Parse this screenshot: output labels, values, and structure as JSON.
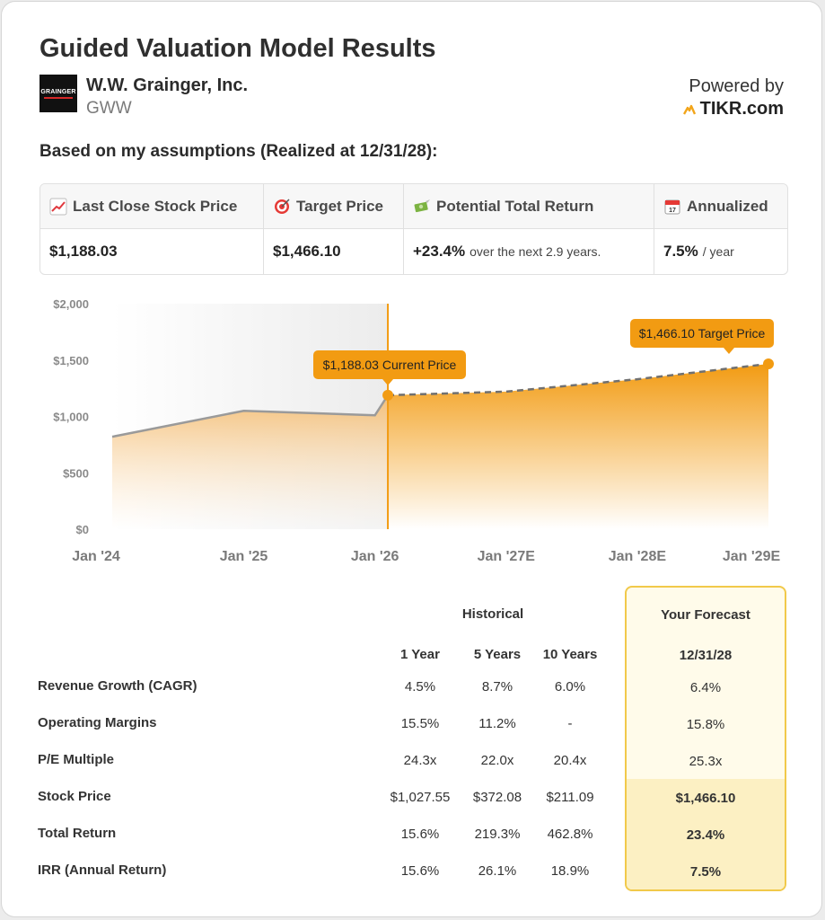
{
  "header": {
    "title": "Guided Valuation Model Results",
    "logo_text": "GRAINGER",
    "company": "W.W. Grainger, Inc.",
    "ticker": "GWW",
    "powered_by": "Powered by",
    "brand": "TIKR.com",
    "subtitle": "Based on my assumptions (Realized at 12/31/28):"
  },
  "summary": [
    {
      "icon": "chart-increasing-icon",
      "label": "Last Close Stock Price",
      "value": "$1,188.03",
      "note": ""
    },
    {
      "icon": "target-icon",
      "label": "Target Price",
      "value": "$1,466.10",
      "note": ""
    },
    {
      "icon": "money-flying-icon",
      "label": "Potential Total Return",
      "value": "+23.4%",
      "note": "over the next 2.9 years."
    },
    {
      "icon": "calendar-icon",
      "label": "Annualized",
      "value": "7.5%",
      "note": "/ year"
    }
  ],
  "chart_data": {
    "type": "area",
    "y_ticks": [
      "$2,000",
      "$1,500",
      "$1,000",
      "$500",
      "$0"
    ],
    "x_ticks": [
      "Jan '24",
      "Jan '25",
      "Jan '26",
      "Jan '27E",
      "Jan '28E",
      "Jan '29E"
    ],
    "ylim": [
      0,
      2000
    ],
    "historical": [
      {
        "x": "2024-01-01",
        "y": 820
      },
      {
        "x": "2025-01-01",
        "y": 1050
      },
      {
        "x": "2026-01-01",
        "y": 1010
      },
      {
        "x": "2026-02-06",
        "y": 1188.03
      }
    ],
    "forecast": [
      {
        "x": "2026-02-06",
        "y": 1188.03
      },
      {
        "x": "2027-01-01",
        "y": 1220
      },
      {
        "x": "2028-01-01",
        "y": 1330
      },
      {
        "x": "2028-12-31",
        "y": 1466.1
      }
    ],
    "current_label": "$1,188.03 Current Price",
    "target_label": "$1,466.10 Target Price",
    "colors": {
      "accent": "#f29b12",
      "history_line": "#9a9a9a",
      "forecast_line": "#707070"
    }
  },
  "table": {
    "historical_header": "Historical",
    "forecast_header": "Your Forecast",
    "columns": [
      "1 Year",
      "5 Years",
      "10 Years"
    ],
    "forecast_column": "12/31/28",
    "rows": [
      {
        "label": "Revenue Growth (CAGR)",
        "values": [
          "4.5%",
          "8.7%",
          "6.0%"
        ],
        "forecast": "6.4%"
      },
      {
        "label": "Operating Margins",
        "values": [
          "15.5%",
          "11.2%",
          "-"
        ],
        "forecast": "15.8%"
      },
      {
        "label": "P/E Multiple",
        "values": [
          "24.3x",
          "22.0x",
          "20.4x"
        ],
        "forecast": "25.3x"
      },
      {
        "label": "Stock Price",
        "values": [
          "$1,027.55",
          "$372.08",
          "$211.09"
        ],
        "forecast": "$1,466.10"
      },
      {
        "label": "Total Return",
        "values": [
          "15.6%",
          "219.3%",
          "462.8%"
        ],
        "forecast": "23.4%"
      },
      {
        "label": "IRR (Annual Return)",
        "values": [
          "15.6%",
          "26.1%",
          "18.9%"
        ],
        "forecast": "7.5%"
      }
    ]
  }
}
